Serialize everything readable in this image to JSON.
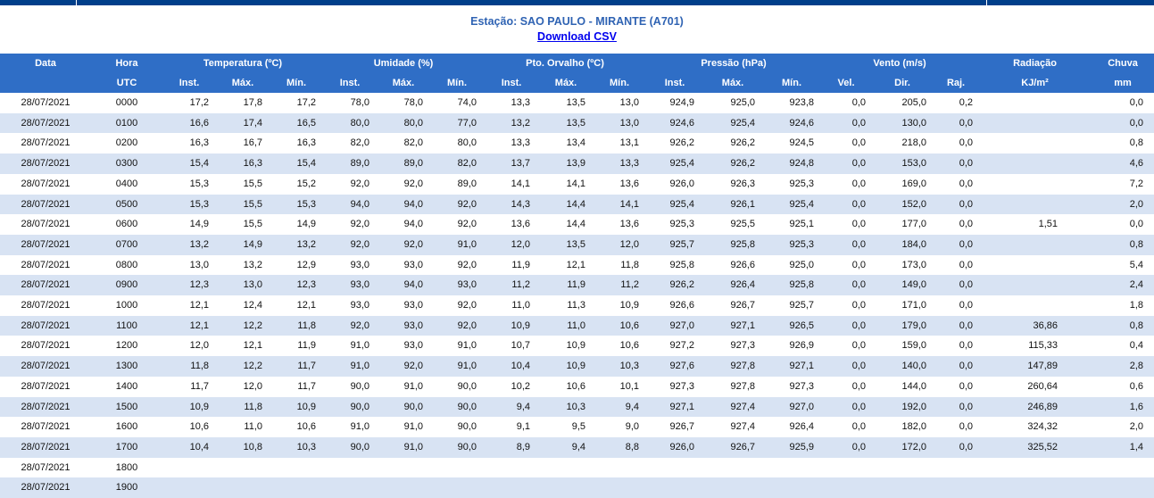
{
  "page": {
    "station": "Estação: SAO PAULO - MIRANTE (A701)",
    "download": "Download CSV"
  },
  "table": {
    "group_headers": [
      "Data",
      "Hora",
      "Temperatura (ºC)",
      "Umidade (%)",
      "Pto. Orvalho (ºC)",
      "Pressão (hPa)",
      "Vento (m/s)",
      "Radiação",
      "Chuva"
    ],
    "sub_headers": [
      "",
      "UTC",
      "Inst.",
      "Máx.",
      "Mín.",
      "Inst.",
      "Máx.",
      "Mín.",
      "Inst.",
      "Máx.",
      "Mín.",
      "Inst.",
      "Máx.",
      "Mín.",
      "Vel.",
      "Dir.",
      "Raj.",
      "KJ/m²",
      "mm"
    ],
    "rows": [
      [
        "28/07/2021",
        "0000",
        "17,2",
        "17,8",
        "17,2",
        "78,0",
        "78,0",
        "74,0",
        "13,3",
        "13,5",
        "13,0",
        "924,9",
        "925,0",
        "923,8",
        "0,0",
        "205,0",
        "0,2",
        "",
        "0,0"
      ],
      [
        "28/07/2021",
        "0100",
        "16,6",
        "17,4",
        "16,5",
        "80,0",
        "80,0",
        "77,0",
        "13,2",
        "13,5",
        "13,0",
        "924,6",
        "925,4",
        "924,6",
        "0,0",
        "130,0",
        "0,0",
        "",
        "0,0"
      ],
      [
        "28/07/2021",
        "0200",
        "16,3",
        "16,7",
        "16,3",
        "82,0",
        "82,0",
        "80,0",
        "13,3",
        "13,4",
        "13,1",
        "926,2",
        "926,2",
        "924,5",
        "0,0",
        "218,0",
        "0,0",
        "",
        "0,8"
      ],
      [
        "28/07/2021",
        "0300",
        "15,4",
        "16,3",
        "15,4",
        "89,0",
        "89,0",
        "82,0",
        "13,7",
        "13,9",
        "13,3",
        "925,4",
        "926,2",
        "924,8",
        "0,0",
        "153,0",
        "0,0",
        "",
        "4,6"
      ],
      [
        "28/07/2021",
        "0400",
        "15,3",
        "15,5",
        "15,2",
        "92,0",
        "92,0",
        "89,0",
        "14,1",
        "14,1",
        "13,6",
        "926,0",
        "926,3",
        "925,3",
        "0,0",
        "169,0",
        "0,0",
        "",
        "7,2"
      ],
      [
        "28/07/2021",
        "0500",
        "15,3",
        "15,5",
        "15,3",
        "94,0",
        "94,0",
        "92,0",
        "14,3",
        "14,4",
        "14,1",
        "925,4",
        "926,1",
        "925,4",
        "0,0",
        "152,0",
        "0,0",
        "",
        "2,0"
      ],
      [
        "28/07/2021",
        "0600",
        "14,9",
        "15,5",
        "14,9",
        "92,0",
        "94,0",
        "92,0",
        "13,6",
        "14,4",
        "13,6",
        "925,3",
        "925,5",
        "925,1",
        "0,0",
        "177,0",
        "0,0",
        "1,51",
        "0,0"
      ],
      [
        "28/07/2021",
        "0700",
        "13,2",
        "14,9",
        "13,2",
        "92,0",
        "92,0",
        "91,0",
        "12,0",
        "13,5",
        "12,0",
        "925,7",
        "925,8",
        "925,3",
        "0,0",
        "184,0",
        "0,0",
        "",
        "0,8"
      ],
      [
        "28/07/2021",
        "0800",
        "13,0",
        "13,2",
        "12,9",
        "93,0",
        "93,0",
        "92,0",
        "11,9",
        "12,1",
        "11,8",
        "925,8",
        "926,6",
        "925,0",
        "0,0",
        "173,0",
        "0,0",
        "",
        "5,4"
      ],
      [
        "28/07/2021",
        "0900",
        "12,3",
        "13,0",
        "12,3",
        "93,0",
        "94,0",
        "93,0",
        "11,2",
        "11,9",
        "11,2",
        "926,2",
        "926,4",
        "925,8",
        "0,0",
        "149,0",
        "0,0",
        "",
        "2,4"
      ],
      [
        "28/07/2021",
        "1000",
        "12,1",
        "12,4",
        "12,1",
        "93,0",
        "93,0",
        "92,0",
        "11,0",
        "11,3",
        "10,9",
        "926,6",
        "926,7",
        "925,7",
        "0,0",
        "171,0",
        "0,0",
        "",
        "1,8"
      ],
      [
        "28/07/2021",
        "1100",
        "12,1",
        "12,2",
        "11,8",
        "92,0",
        "93,0",
        "92,0",
        "10,9",
        "11,0",
        "10,6",
        "927,0",
        "927,1",
        "926,5",
        "0,0",
        "179,0",
        "0,0",
        "36,86",
        "0,8"
      ],
      [
        "28/07/2021",
        "1200",
        "12,0",
        "12,1",
        "11,9",
        "91,0",
        "93,0",
        "91,0",
        "10,7",
        "10,9",
        "10,6",
        "927,2",
        "927,3",
        "926,9",
        "0,0",
        "159,0",
        "0,0",
        "115,33",
        "0,4"
      ],
      [
        "28/07/2021",
        "1300",
        "11,8",
        "12,2",
        "11,7",
        "91,0",
        "92,0",
        "91,0",
        "10,4",
        "10,9",
        "10,3",
        "927,6",
        "927,8",
        "927,1",
        "0,0",
        "140,0",
        "0,0",
        "147,89",
        "2,8"
      ],
      [
        "28/07/2021",
        "1400",
        "11,7",
        "12,0",
        "11,7",
        "90,0",
        "91,0",
        "90,0",
        "10,2",
        "10,6",
        "10,1",
        "927,3",
        "927,8",
        "927,3",
        "0,0",
        "144,0",
        "0,0",
        "260,64",
        "0,6"
      ],
      [
        "28/07/2021",
        "1500",
        "10,9",
        "11,8",
        "10,9",
        "90,0",
        "90,0",
        "90,0",
        "9,4",
        "10,3",
        "9,4",
        "927,1",
        "927,4",
        "927,0",
        "0,0",
        "192,0",
        "0,0",
        "246,89",
        "1,6"
      ],
      [
        "28/07/2021",
        "1600",
        "10,6",
        "11,0",
        "10,6",
        "91,0",
        "91,0",
        "90,0",
        "9,1",
        "9,5",
        "9,0",
        "926,7",
        "927,4",
        "926,4",
        "0,0",
        "182,0",
        "0,0",
        "324,32",
        "2,0"
      ],
      [
        "28/07/2021",
        "1700",
        "10,4",
        "10,8",
        "10,3",
        "90,0",
        "91,0",
        "90,0",
        "8,9",
        "9,4",
        "8,8",
        "926,0",
        "926,7",
        "925,9",
        "0,0",
        "172,0",
        "0,0",
        "325,52",
        "1,4"
      ],
      [
        "28/07/2021",
        "1800",
        "",
        "",
        "",
        "",
        "",
        "",
        "",
        "",
        "",
        "",
        "",
        "",
        "",
        "",
        "",
        "",
        ""
      ],
      [
        "28/07/2021",
        "1900",
        "",
        "",
        "",
        "",
        "",
        "",
        "",
        "",
        "",
        "",
        "",
        "",
        "",
        "",
        "",
        "",
        ""
      ]
    ]
  }
}
